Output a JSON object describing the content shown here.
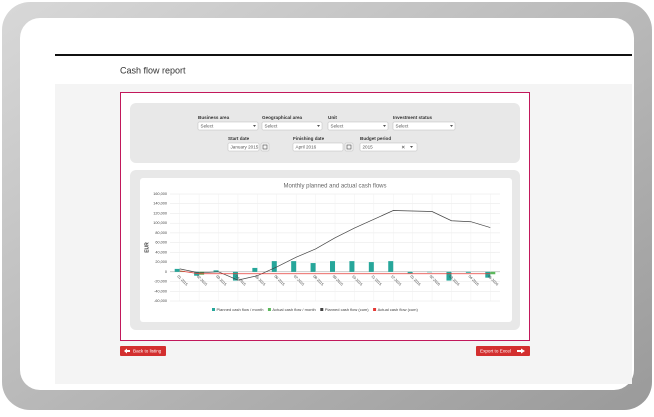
{
  "header": {
    "title": "Cash flow report"
  },
  "filters": {
    "business_area": {
      "label": "Business area",
      "value": "Select"
    },
    "geographical_area": {
      "label": "Geographical area",
      "value": "Select"
    },
    "unit": {
      "label": "Unit",
      "value": "Select"
    },
    "investment_status": {
      "label": "Investment status",
      "value": "Select"
    },
    "start_date": {
      "label": "Start date",
      "value": "January 2015"
    },
    "finishing_date": {
      "label": "Finishing date",
      "value": "April 2016"
    },
    "budget_period": {
      "label": "Budget period",
      "value": "2015"
    }
  },
  "buttons": {
    "back": "Back to listing",
    "export": "Export to Excel"
  },
  "chart_data": {
    "type": "bar",
    "title": "Monthly planned and actual cash flows",
    "ylabel": "EUR",
    "categories": [
      "01-2015",
      "02-2015",
      "03-2015",
      "04-2015",
      "05-2015",
      "06-2015",
      "07-2015",
      "08-2015",
      "09-2015",
      "10-2015",
      "11-2015",
      "12-2015",
      "01-2016",
      "02-2016",
      "03-2016",
      "04-2016",
      "05-2016"
    ],
    "series": [
      {
        "name": "Planned cash flow / month",
        "type": "bar",
        "color": "#26a69a",
        "values": [
          6000,
          -8000,
          3000,
          -18000,
          8000,
          22000,
          22000,
          18000,
          22000,
          22000,
          20000,
          22000,
          -3000,
          -1000,
          -18000,
          -2000,
          -12000
        ]
      },
      {
        "name": "Actual cash flow / month",
        "type": "bar",
        "color": "#5cb85c",
        "values": [
          2000,
          -6000,
          0,
          0,
          0,
          0,
          0,
          0,
          0,
          0,
          0,
          0,
          0,
          0,
          0,
          0,
          -5000
        ]
      },
      {
        "name": "Planned cash flow (cum)",
        "type": "line",
        "color": "#444444",
        "values": [
          6000,
          -2000,
          0,
          -17000,
          -8000,
          10000,
          30000,
          47000,
          70000,
          90000,
          108000,
          126000,
          125000,
          124000,
          105000,
          103000,
          91000
        ]
      },
      {
        "name": "Actual cash flow (cum)",
        "type": "line",
        "color": "#e53935",
        "values": [
          2000,
          -4000,
          -4000,
          -4000,
          -4000,
          -4000,
          -4000,
          -4000,
          -4000,
          -4000,
          -4000,
          -4000,
          -4000,
          -4000,
          -4000,
          -4000,
          -4000
        ]
      }
    ],
    "ylim": [
      -60000,
      160000
    ],
    "yticks": [
      {
        "value": -60000,
        "label": "-60,000"
      },
      {
        "value": -40000,
        "label": "-40,000"
      },
      {
        "value": -20000,
        "label": "-20,000"
      },
      0,
      {
        "value": 20000,
        "label": "20,000"
      },
      {
        "value": 40000,
        "label": "40,000"
      },
      {
        "value": 60000,
        "label": "60,000"
      },
      {
        "value": 80000,
        "label": "80,000"
      },
      {
        "value": 100000,
        "label": "100,000"
      },
      {
        "value": 120000,
        "label": "120,000"
      },
      {
        "value": 140000,
        "label": "140,000"
      },
      {
        "value": 160000,
        "label": "160,000"
      }
    ],
    "grid": true
  }
}
